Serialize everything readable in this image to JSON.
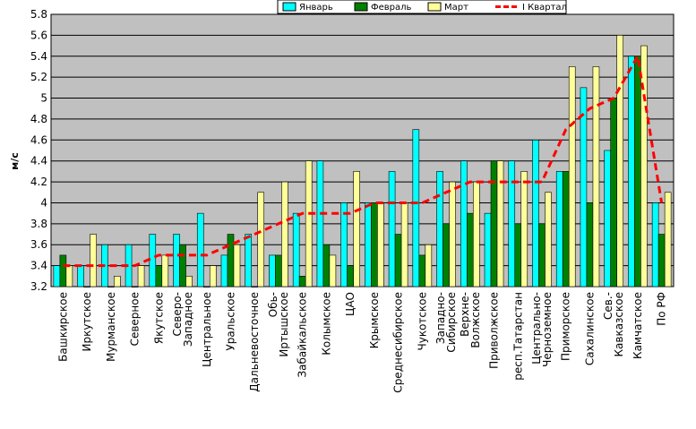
{
  "chart_data": {
    "type": "bar",
    "ylabel": "м/с",
    "ylim": [
      3.2,
      5.8
    ],
    "yticks": [
      "3.2",
      "3.4",
      "3.6",
      "3.8",
      "4",
      "4.2",
      "4.4",
      "4.6",
      "4.8",
      "5",
      "5.2",
      "5.4",
      "5.6",
      "5.8"
    ],
    "grid": true,
    "legend_position": "top-right",
    "categories": [
      "Башкирское",
      "Иркутское",
      "Мурманское",
      "Северное",
      "Якутское",
      "Северо-Западное",
      "Центральное",
      "Уральское",
      "Дальневосточное",
      "Обь-Иртышское",
      "Забайкальское",
      "Колымское",
      "ЦАО",
      "Крымское",
      "Среднесибирское",
      "Чукотское",
      "Западно-Сибирское",
      "Верхне-Волжское",
      "Приволжское",
      "респ.Татарстан",
      "Центрально-Черноземное",
      "Приморское",
      "Сахалинское",
      "Сев.-Кавказское",
      "Камчатское",
      "По РФ"
    ],
    "category_lines": [
      [
        "Башкирское"
      ],
      [
        "Иркутское"
      ],
      [
        "Мурманское"
      ],
      [
        "Северное"
      ],
      [
        "Якутское"
      ],
      [
        "Северо-",
        "Западное"
      ],
      [
        "Центральное"
      ],
      [
        "Уральское"
      ],
      [
        "Дальневосточное"
      ],
      [
        "Обь-",
        "Иртышское"
      ],
      [
        "Забайкальское"
      ],
      [
        "Колымское"
      ],
      [
        "ЦАО"
      ],
      [
        "Крымское"
      ],
      [
        "Среднесибирское"
      ],
      [
        "Чукотское"
      ],
      [
        "Западно-",
        "Сибирское"
      ],
      [
        "Верхне-",
        "Волжское"
      ],
      [
        "Приволжское"
      ],
      [
        "респ.Татарстан"
      ],
      [
        "Центрально-",
        "Черноземное"
      ],
      [
        "Приморское"
      ],
      [
        "Сахалинское"
      ],
      [
        "Сев.-",
        "Кавказское"
      ],
      [
        "Камчатское"
      ],
      [
        "По РФ"
      ]
    ],
    "series": [
      {
        "name": "Январь",
        "type": "bar",
        "color": "#00ffff",
        "values": [
          3.4,
          3.4,
          3.6,
          3.6,
          3.7,
          3.7,
          3.9,
          3.5,
          3.7,
          3.5,
          3.9,
          4.4,
          4.0,
          4.0,
          4.3,
          4.7,
          4.3,
          4.4,
          3.9,
          4.4,
          4.6,
          4.3,
          5.1,
          4.5,
          5.4,
          4.0
        ]
      },
      {
        "name": "Февраль",
        "type": "bar",
        "color": "#008000",
        "values": [
          3.5,
          3.2,
          3.2,
          3.2,
          3.4,
          3.6,
          3.2,
          3.7,
          3.2,
          3.5,
          3.3,
          3.6,
          3.4,
          4.0,
          3.7,
          3.5,
          3.8,
          3.9,
          4.4,
          3.8,
          3.8,
          4.3,
          4.0,
          5.0,
          5.4,
          3.7
        ]
      },
      {
        "name": "Март",
        "type": "bar",
        "color": "#ffff99",
        "values": [
          3.4,
          3.7,
          3.3,
          3.4,
          3.5,
          3.3,
          3.4,
          3.6,
          4.1,
          4.2,
          4.4,
          3.5,
          4.3,
          4.0,
          4.0,
          3.6,
          4.2,
          4.2,
          4.4,
          4.3,
          4.1,
          5.3,
          5.3,
          5.6,
          5.5,
          4.1
        ]
      },
      {
        "name": "I Квартал",
        "type": "line",
        "color": "#ff0000",
        "values": [
          3.4,
          3.4,
          3.4,
          3.4,
          3.5,
          3.5,
          3.5,
          3.6,
          3.7,
          3.8,
          3.9,
          3.9,
          3.9,
          4.0,
          4.0,
          4.0,
          4.1,
          4.2,
          4.2,
          4.2,
          4.2,
          4.7,
          4.9,
          5.0,
          5.4,
          4.0
        ]
      }
    ]
  }
}
